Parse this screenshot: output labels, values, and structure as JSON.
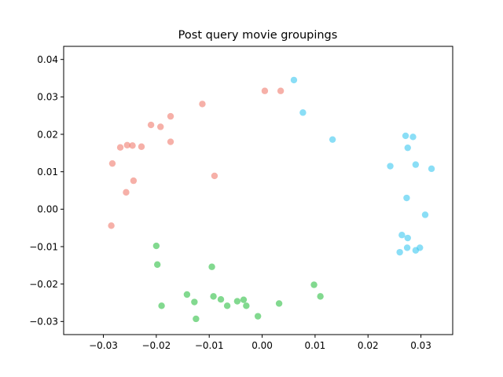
{
  "chart_data": {
    "type": "scatter",
    "title": "Post query movie groupings",
    "xlabel": "",
    "ylabel": "",
    "xlim": [
      -0.0375,
      0.036
    ],
    "ylim": [
      -0.0335,
      0.0435
    ],
    "xticks": [
      -0.03,
      -0.02,
      -0.01,
      0.0,
      0.01,
      0.02,
      0.03
    ],
    "xtick_labels": [
      "−0.03",
      "−0.02",
      "−0.01",
      "0.00",
      "0.01",
      "0.02",
      "0.03"
    ],
    "yticks": [
      -0.03,
      -0.02,
      -0.01,
      0.0,
      0.01,
      0.02,
      0.03,
      0.04
    ],
    "ytick_labels": [
      "−0.03",
      "−0.02",
      "−0.01",
      "0.00",
      "0.01",
      "0.02",
      "0.03",
      "0.04"
    ],
    "grid": false,
    "legend": "none",
    "point_alpha": 0.6,
    "series": [
      {
        "color": "#f07b6e",
        "points": [
          [
            -0.0113,
            0.0281
          ],
          [
            -0.0173,
            0.0248
          ],
          [
            -0.021,
            0.0225
          ],
          [
            -0.0192,
            0.022
          ],
          [
            -0.0173,
            0.018
          ],
          [
            -0.0268,
            0.0165
          ],
          [
            -0.0255,
            0.0171
          ],
          [
            -0.0245,
            0.017
          ],
          [
            -0.0228,
            0.0167
          ],
          [
            -0.0283,
            0.0122
          ],
          [
            -0.009,
            0.0089
          ],
          [
            -0.0243,
            0.0076
          ],
          [
            -0.0257,
            0.0045
          ],
          [
            -0.0285,
            -0.0044
          ],
          [
            0.0005,
            0.0316
          ],
          [
            0.0035,
            0.0316
          ]
        ]
      },
      {
        "color": "#3cc8f0",
        "points": [
          [
            0.006,
            0.0345
          ],
          [
            0.0077,
            0.0258
          ],
          [
            0.0133,
            0.0186
          ],
          [
            0.0271,
            0.0196
          ],
          [
            0.0285,
            0.0193
          ],
          [
            0.0275,
            0.0164
          ],
          [
            0.0242,
            0.0115
          ],
          [
            0.029,
            0.0119
          ],
          [
            0.032,
            0.0108
          ],
          [
            0.0273,
            0.003
          ],
          [
            0.0308,
            -0.0015
          ],
          [
            0.0264,
            -0.0069
          ],
          [
            0.0275,
            -0.0077
          ],
          [
            0.0274,
            -0.0103
          ],
          [
            0.026,
            -0.0115
          ],
          [
            0.029,
            -0.011
          ],
          [
            0.0298,
            -0.0103
          ]
        ]
      },
      {
        "color": "#2ec045",
        "points": [
          [
            -0.02,
            -0.0098
          ],
          [
            -0.0198,
            -0.0148
          ],
          [
            -0.0095,
            -0.0154
          ],
          [
            -0.019,
            -0.0258
          ],
          [
            -0.0142,
            -0.0228
          ],
          [
            -0.0128,
            -0.0248
          ],
          [
            -0.0125,
            -0.0293
          ],
          [
            -0.0092,
            -0.0233
          ],
          [
            -0.0078,
            -0.0241
          ],
          [
            -0.0066,
            -0.0258
          ],
          [
            -0.0047,
            -0.0246
          ],
          [
            -0.0035,
            -0.0242
          ],
          [
            -0.003,
            -0.0258
          ],
          [
            -0.0008,
            -0.0286
          ],
          [
            0.0032,
            -0.0252
          ],
          [
            0.0098,
            -0.0202
          ],
          [
            0.011,
            -0.0233
          ]
        ]
      }
    ]
  }
}
